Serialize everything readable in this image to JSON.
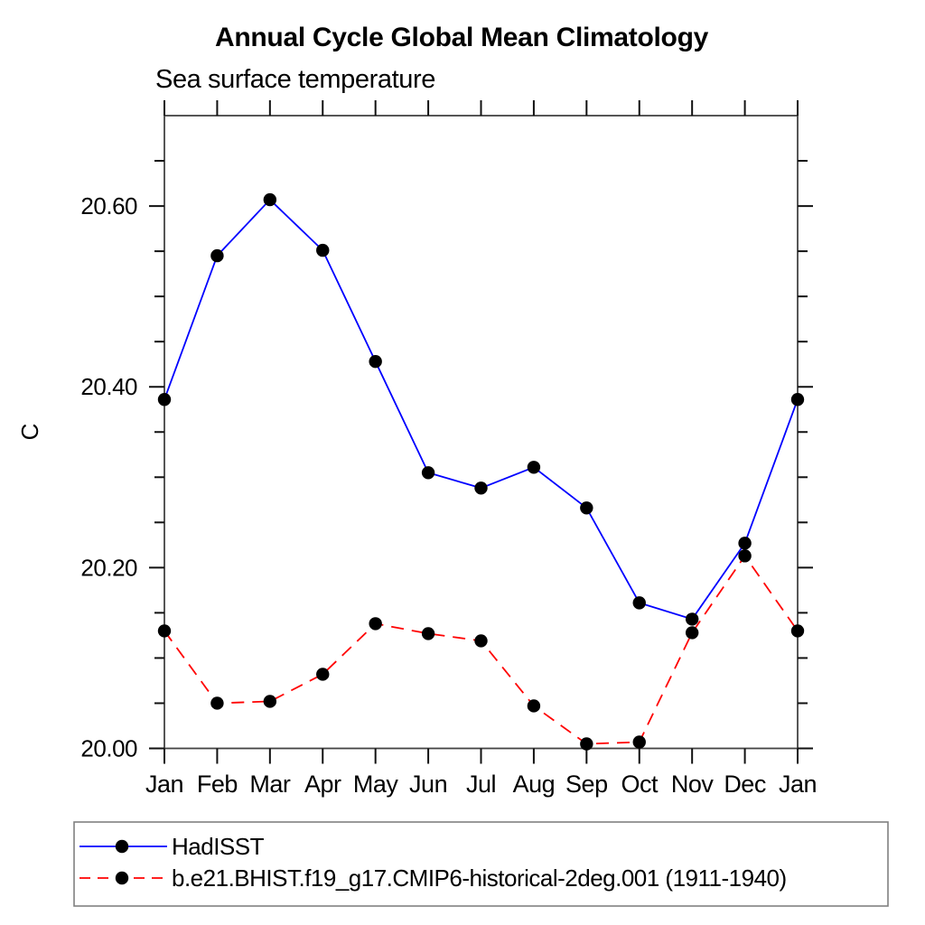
{
  "chart_data": {
    "type": "line",
    "title": "Annual Cycle Global Mean Climatology",
    "subtitle": "Sea surface temperature",
    "ylabel": "C",
    "xlabel": "",
    "x_tick_labels": [
      "Jan",
      "Feb",
      "Mar",
      "Apr",
      "May",
      "Jun",
      "Jul",
      "Aug",
      "Sep",
      "Oct",
      "Nov",
      "Dec",
      "Jan"
    ],
    "categories": [
      "Jan",
      "Feb",
      "Mar",
      "Apr",
      "May",
      "Jun",
      "Jul",
      "Aug",
      "Sep",
      "Oct",
      "Nov",
      "Dec",
      "Jan"
    ],
    "ylim": [
      20.0,
      20.7
    ],
    "ytick_major_labels": [
      "20.00",
      "20.20",
      "20.40",
      "20.60"
    ],
    "ytick_major_values": [
      20.0,
      20.2,
      20.4,
      20.6
    ],
    "ytick_minor_values": [
      20.05,
      20.1,
      20.15,
      20.25,
      20.3,
      20.35,
      20.45,
      20.5,
      20.55,
      20.65
    ],
    "grid": false,
    "legend_position": "bottom-left",
    "frame_color": "#444444",
    "tick_color": "#111111",
    "legend_border_color": "#808080",
    "series": [
      {
        "name": "HadISST",
        "color": "#0000ff",
        "line_style": "solid",
        "marker": "filled-circle",
        "marker_color": "#000000",
        "values": [
          20.386,
          20.545,
          20.607,
          20.551,
          20.428,
          20.305,
          20.288,
          20.311,
          20.266,
          20.161,
          20.143,
          20.227,
          20.386
        ]
      },
      {
        "name": "b.e21.BHIST.f19_g17.CMIP6-historical-2deg.001 (1911-1940)",
        "color": "#ff0000",
        "line_style": "dashed",
        "marker": "filled-circle",
        "marker_color": "#000000",
        "values": [
          20.13,
          20.05,
          20.052,
          20.082,
          20.138,
          20.127,
          20.119,
          20.047,
          20.005,
          20.007,
          20.128,
          20.213,
          20.13
        ]
      }
    ]
  }
}
